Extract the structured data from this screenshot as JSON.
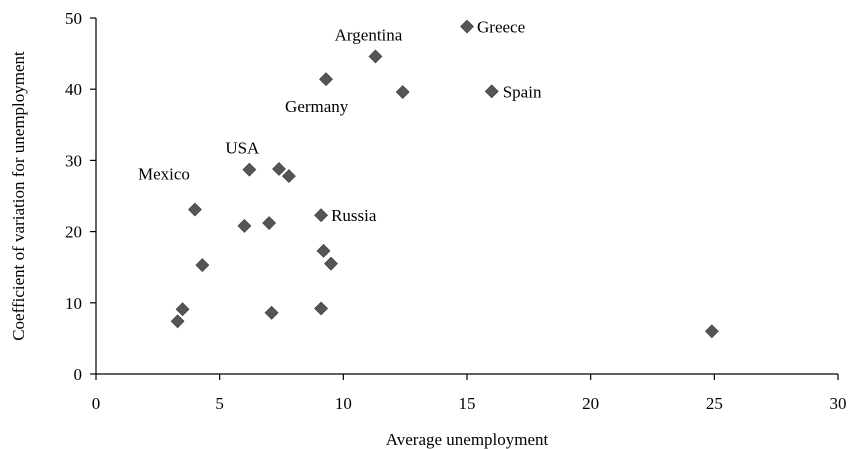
{
  "chart_data": {
    "type": "scatter",
    "title": "",
    "xlabel": "Average unemployment",
    "ylabel": "Coefficient of variation for unemployment",
    "xlim": [
      0,
      30
    ],
    "ylim": [
      0,
      50
    ],
    "xticks": [
      0,
      5,
      10,
      15,
      20,
      25,
      30
    ],
    "yticks": [
      0,
      10,
      20,
      30,
      40,
      50
    ],
    "grid": false,
    "marker": "diamond",
    "marker_color": "#555555",
    "points": [
      {
        "x": 15.0,
        "y": 48.8,
        "label": "Greece"
      },
      {
        "x": 11.3,
        "y": 44.6,
        "label": "Argentina"
      },
      {
        "x": 9.3,
        "y": 41.4,
        "label": ""
      },
      {
        "x": 12.4,
        "y": 39.6,
        "label": "Germany"
      },
      {
        "x": 16.0,
        "y": 39.7,
        "label": "Spain"
      },
      {
        "x": 6.2,
        "y": 28.7,
        "label": "USA"
      },
      {
        "x": 7.4,
        "y": 28.8,
        "label": ""
      },
      {
        "x": 7.8,
        "y": 27.8,
        "label": ""
      },
      {
        "x": 4.0,
        "y": 23.1,
        "label": "Mexico"
      },
      {
        "x": 9.1,
        "y": 22.3,
        "label": "Russia"
      },
      {
        "x": 6.0,
        "y": 20.8,
        "label": ""
      },
      {
        "x": 7.0,
        "y": 21.2,
        "label": ""
      },
      {
        "x": 9.2,
        "y": 17.3,
        "label": ""
      },
      {
        "x": 9.5,
        "y": 15.5,
        "label": ""
      },
      {
        "x": 4.3,
        "y": 15.3,
        "label": ""
      },
      {
        "x": 3.5,
        "y": 9.1,
        "label": ""
      },
      {
        "x": 3.3,
        "y": 7.4,
        "label": ""
      },
      {
        "x": 7.1,
        "y": 8.6,
        "label": ""
      },
      {
        "x": 9.1,
        "y": 9.2,
        "label": ""
      },
      {
        "x": 24.9,
        "y": 6.0,
        "label": ""
      }
    ]
  }
}
